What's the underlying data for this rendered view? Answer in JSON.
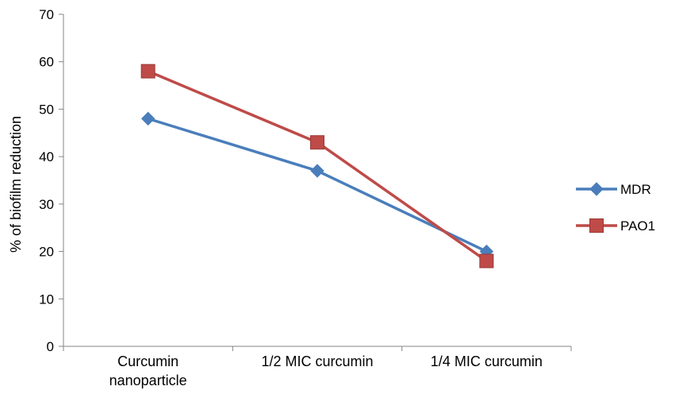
{
  "chart_data": {
    "type": "line",
    "title": "",
    "xlabel": "",
    "ylabel": "% of biofilm reduction",
    "ylim": [
      0,
      70
    ],
    "yticks": [
      0,
      10,
      20,
      30,
      40,
      50,
      60,
      70
    ],
    "grid": false,
    "legend_position": "right",
    "categories": [
      [
        "Curcumin",
        "nanoparticle"
      ],
      [
        "1/2 MIC curcumin"
      ],
      [
        "1/4 MIC curcumin"
      ]
    ],
    "series": [
      {
        "name": "MDR",
        "values": [
          48,
          37,
          20
        ],
        "color": "#4a7ebb",
        "marker": "diamond"
      },
      {
        "name": "PAO1",
        "values": [
          58,
          43,
          18
        ],
        "color": "#be4b48",
        "marker": "square"
      }
    ]
  }
}
